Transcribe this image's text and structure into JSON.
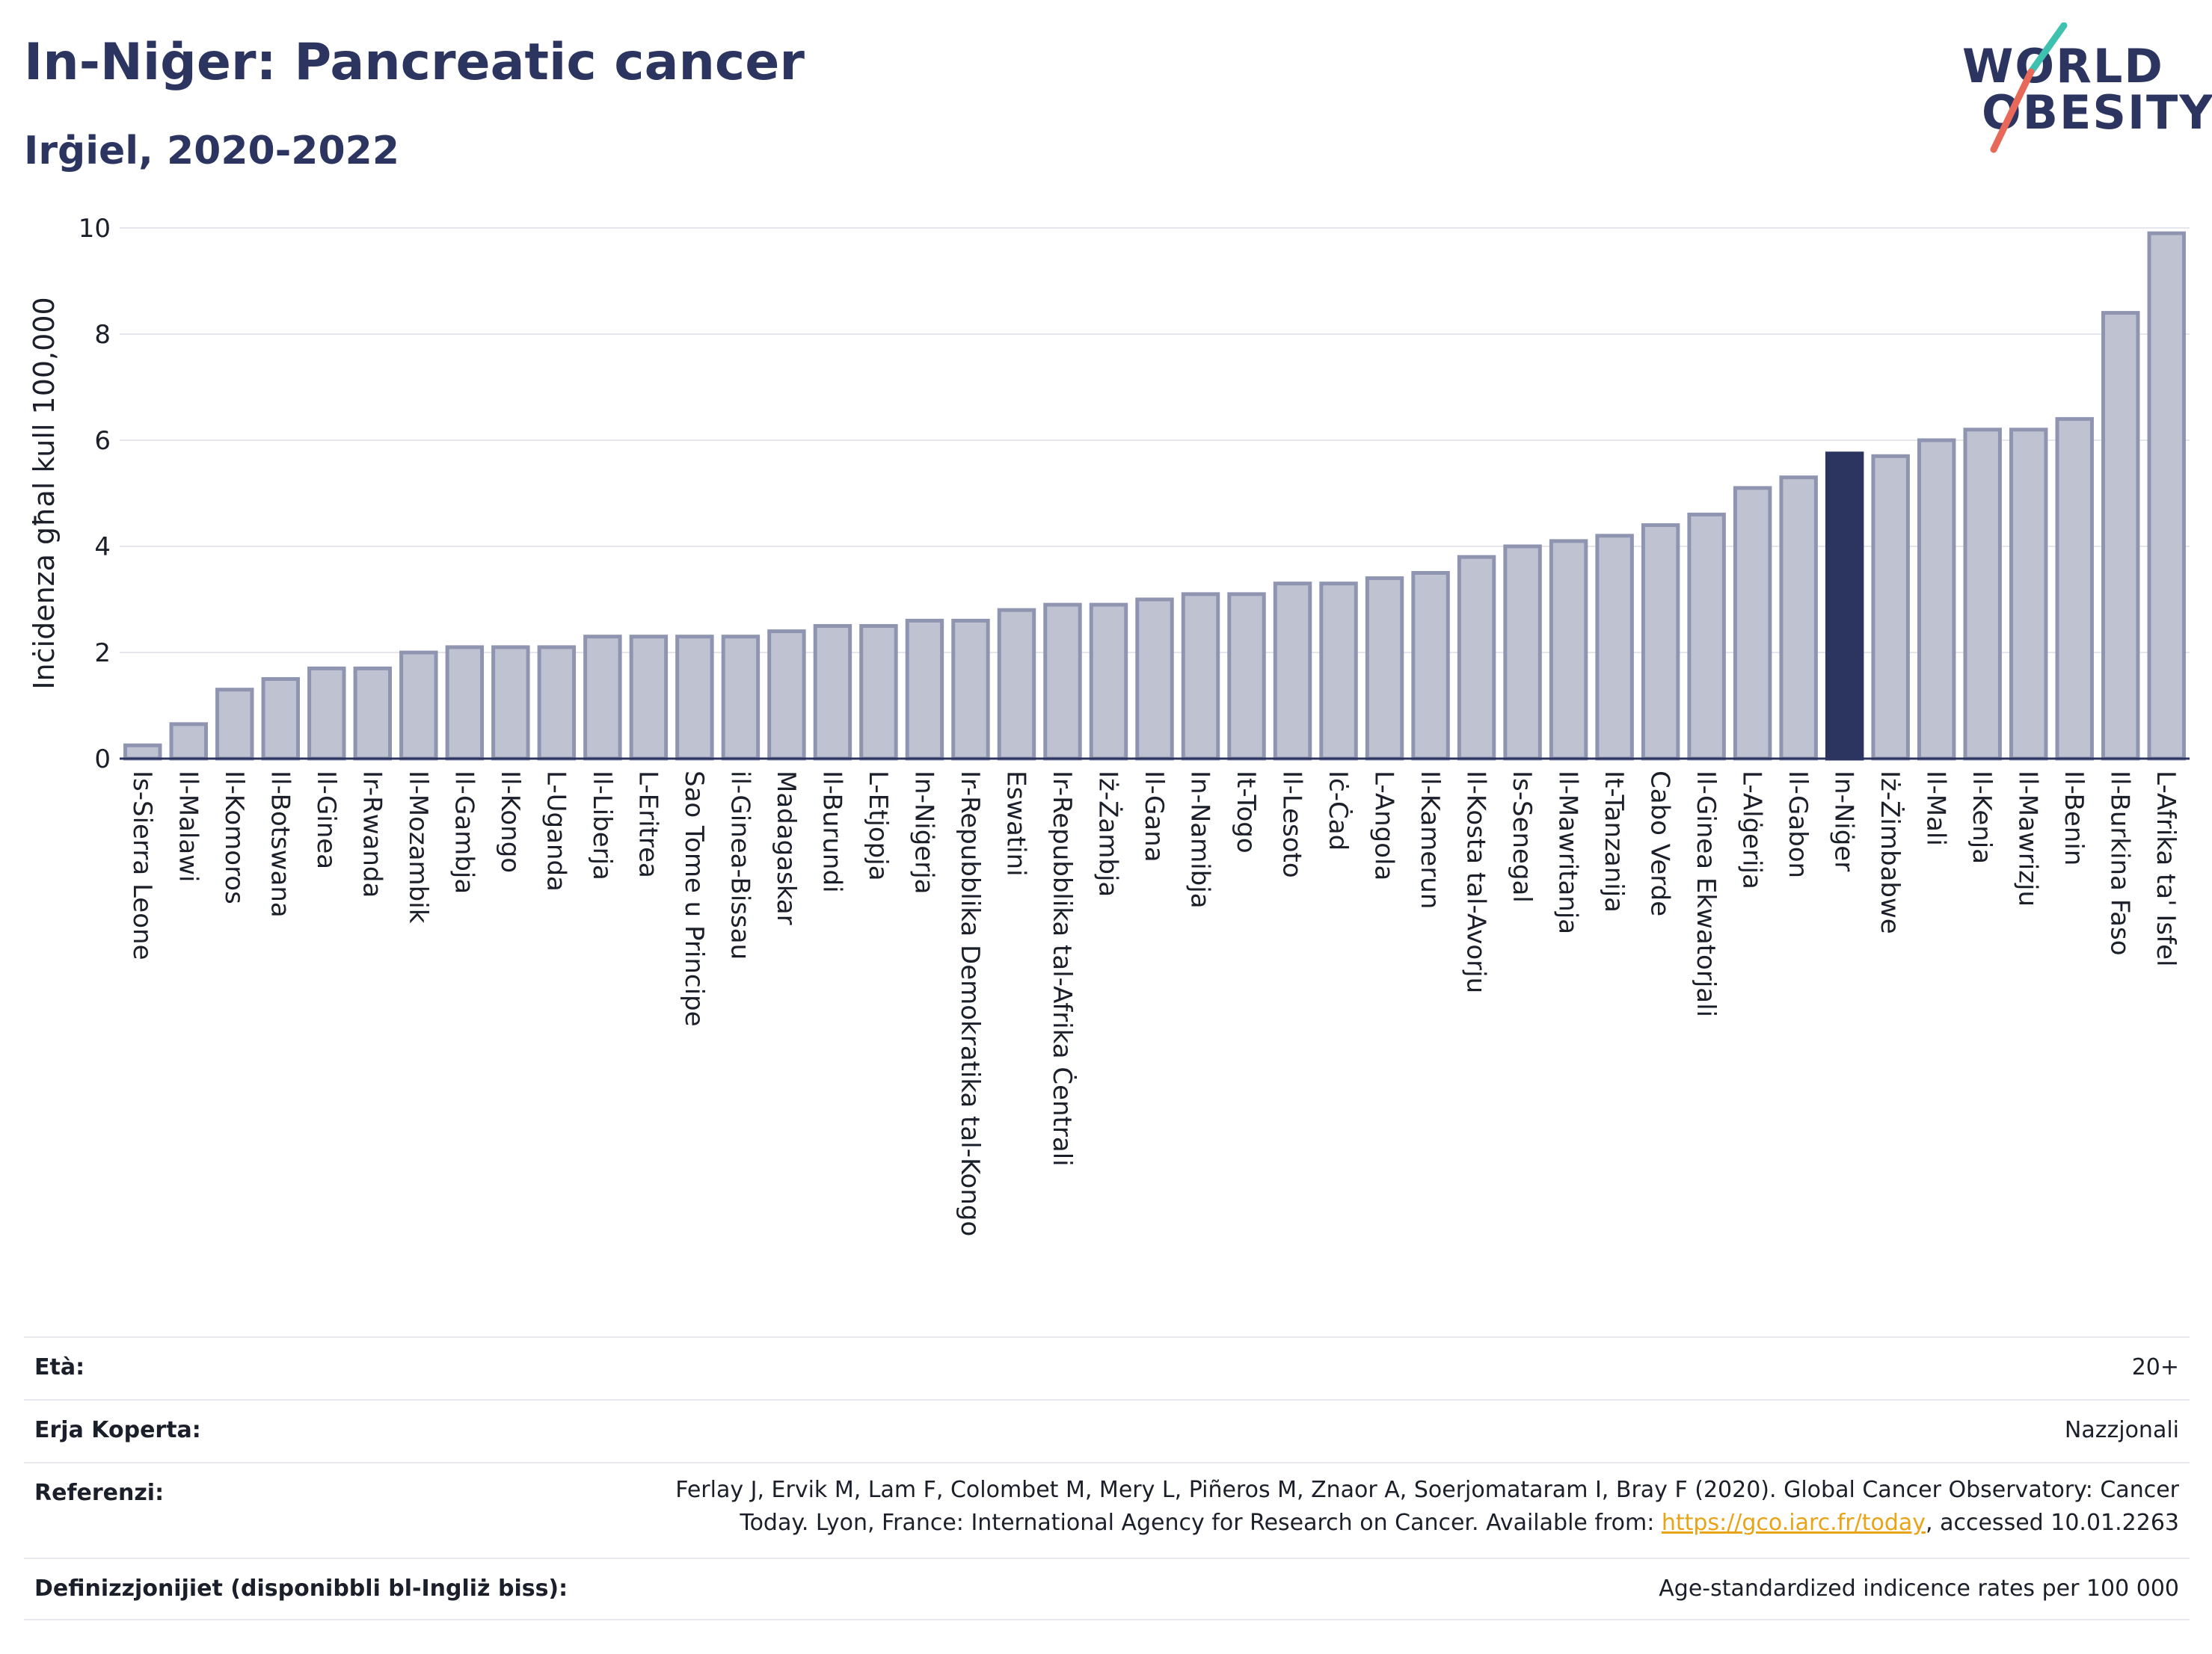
{
  "header": {
    "title": "In-Niġer: Pancreatic cancer",
    "subtitle": "Irġiel, 2020-2022"
  },
  "logo": {
    "line1": "WORLD",
    "line2": "OBESITY",
    "colors": {
      "navy": "#2b3560",
      "teal": "#3fc1b0",
      "coral": "#e8685a"
    }
  },
  "chart_data": {
    "type": "bar",
    "ylabel": "Inċidenza għal kull 100,000",
    "ylim": [
      0,
      10
    ],
    "yticks": [
      0,
      2,
      4,
      6,
      8,
      10
    ],
    "grid": true,
    "highlight": "In-Niġer",
    "colors": {
      "bar": "#bfc3d1",
      "bar_border": "#8f95b0",
      "highlight": "#2b3560"
    },
    "categories": [
      "Is-Sierra Leone",
      "Il-Malawi",
      "Il-Komoros",
      "Il-Botswana",
      "Il-Ginea",
      "Ir-Rwanda",
      "Il-Mozambik",
      "Il-Gambja",
      "Il-Kongo",
      "L-Uganda",
      "Il-Liberja",
      "L-Eritrea",
      "Sao Tome u Principe",
      "il-Ginea-Bissau",
      "Madagaskar",
      "Il-Burundi",
      "L-Etjopja",
      "In-Niġerja",
      "Ir-Repubblika Demokratika tal-Kongo",
      "Eswatini",
      "Ir-Repubblika tal-Afrika Ċentrali",
      "Iż-Żambja",
      "Il-Gana",
      "In-Namibja",
      "It-Togo",
      "Il-Lesoto",
      "Iċ-Ċad",
      "L-Angola",
      "Il-Kamerun",
      "Il-Kosta tal-Avorju",
      "Is-Senegal",
      "Il-Mawritanja",
      "It-Tanzanija",
      "Cabo Verde",
      "Il-Ginea Ekwatorjali",
      "L-Alġerija",
      "Il-Gabon",
      "In-Niġer",
      "Iż-Żimbabwe",
      "Il-Mali",
      "Il-Kenja",
      "Il-Mawrizju",
      "Il-Benin",
      "Il-Burkina Faso",
      "L-Afrika ta' Isfel"
    ],
    "values": [
      0.25,
      0.65,
      1.3,
      1.5,
      1.7,
      1.7,
      2.0,
      2.1,
      2.1,
      2.1,
      2.3,
      2.3,
      2.3,
      2.3,
      2.4,
      2.5,
      2.5,
      2.6,
      2.6,
      2.8,
      2.9,
      2.9,
      3.0,
      3.1,
      3.1,
      3.3,
      3.3,
      3.4,
      3.5,
      3.8,
      4.0,
      4.1,
      4.2,
      4.4,
      4.6,
      5.1,
      5.3,
      5.75,
      5.7,
      6.0,
      6.2,
      6.2,
      6.4,
      8.4,
      9.9
    ]
  },
  "meta": {
    "age_label": "Età:",
    "age_value": "20+",
    "area_label": "Erja Koperta:",
    "area_value": "Nazzjonali",
    "ref_label": "Referenzi:",
    "ref_line1": "Ferlay J, Ervik M, Lam F, Colombet M, Mery L, Piñeros M, Znaor A, Soerjomataram I, Bray F (2020). Global Cancer Observatory: Cancer",
    "ref_line2_pre": "Today. Lyon, France: International Agency for Research on Cancer. Available from: ",
    "ref_link": "https://gco.iarc.fr/today",
    "ref_line2_post": ", accessed 10.01.2263",
    "def_label": "Definizzjonijiet (disponibbli bl-Ingliż biss):",
    "def_value": "Age-standardized indicence rates per 100 000"
  }
}
